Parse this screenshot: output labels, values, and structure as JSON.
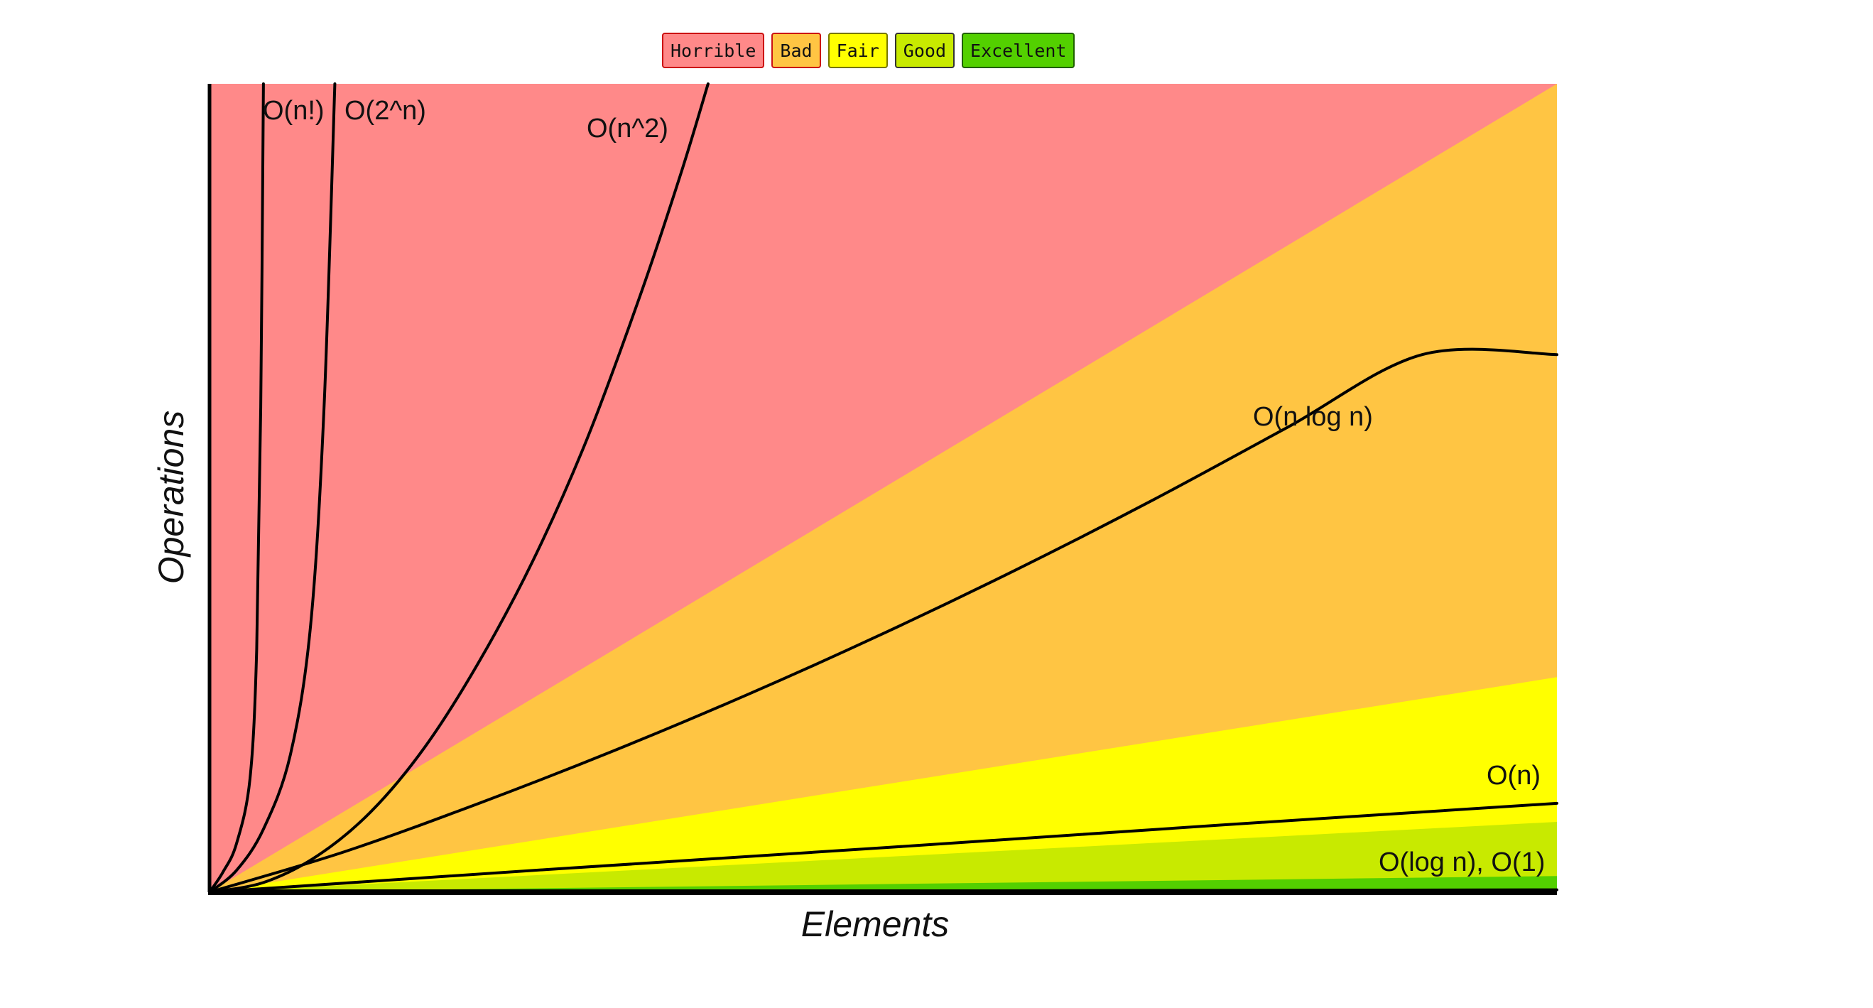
{
  "chart_data": {
    "type": "area",
    "title": "",
    "xlabel": "Elements",
    "ylabel": "Operations",
    "xlim": [
      0,
      100
    ],
    "ylim": [
      0,
      100
    ],
    "grid": false,
    "legend": {
      "placement": "top-center",
      "entries": [
        {
          "label": "Horrible",
          "color": "#ff8989",
          "border": "#cc1111"
        },
        {
          "label": "Bad",
          "color": "#ffc543",
          "border": "#cc1111"
        },
        {
          "label": "Fair",
          "color": "#ffff00",
          "border": "#777700"
        },
        {
          "label": "Good",
          "color": "#c8ea00",
          "border": "#333333"
        },
        {
          "label": "Excellent",
          "color": "#53d000",
          "border": "#1f5f00"
        }
      ]
    },
    "regions": [
      {
        "name": "Horrible",
        "color": "#ff8989",
        "upper_at_x100": 100
      },
      {
        "name": "Bad",
        "color": "#ffc543",
        "upper_at_x100": 100
      },
      {
        "name": "Fair",
        "color": "#ffff00",
        "upper_at_x100": 26.6
      },
      {
        "name": "Good",
        "color": "#c8ea00",
        "upper_at_x100": 8.7
      },
      {
        "name": "Excellent",
        "color": "#53d000",
        "upper_at_x100": 2.0
      }
    ],
    "series": [
      {
        "name": "O(n!)",
        "values": [
          [
            0,
            0
          ],
          [
            1,
            2.5
          ],
          [
            2,
            6
          ],
          [
            3,
            14
          ],
          [
            3.5,
            30
          ],
          [
            3.8,
            60
          ],
          [
            4.0,
            100
          ]
        ]
      },
      {
        "name": "O(2^n)",
        "values": [
          [
            0,
            0
          ],
          [
            2,
            2.7
          ],
          [
            4,
            7.8
          ],
          [
            6,
            17
          ],
          [
            7.5,
            33
          ],
          [
            8.5,
            60
          ],
          [
            9.3,
            100
          ]
        ]
      },
      {
        "name": "O(n^2)",
        "values": [
          [
            0,
            0
          ],
          [
            4,
            1.2
          ],
          [
            8,
            4.5
          ],
          [
            12,
            10
          ],
          [
            16,
            18
          ],
          [
            20,
            28.5
          ],
          [
            24,
            41
          ],
          [
            28,
            56
          ],
          [
            32,
            74
          ],
          [
            35,
            89
          ],
          [
            37,
            100
          ]
        ]
      },
      {
        "name": "O(n log n)",
        "values": [
          [
            0,
            0
          ],
          [
            10,
            5
          ],
          [
            20,
            11
          ],
          [
            30,
            17.5
          ],
          [
            40,
            24.5
          ],
          [
            50,
            32
          ],
          [
            60,
            40
          ],
          [
            70,
            48.5
          ],
          [
            80,
            57.5
          ],
          [
            90,
            66.5
          ],
          [
            100,
            66.5
          ]
        ]
      },
      {
        "name": "O(n)",
        "values": [
          [
            0,
            0
          ],
          [
            25,
            2.8
          ],
          [
            50,
            5.5
          ],
          [
            75,
            8.3
          ],
          [
            100,
            11
          ]
        ]
      },
      {
        "name": "O(log n), O(1)",
        "values": [
          [
            0,
            0
          ],
          [
            100,
            0.3
          ]
        ]
      }
    ],
    "labels": [
      "O(n!)",
      "O(2^n)",
      "O(n^2)",
      "O(n log n)",
      "O(n)",
      "O(log n), O(1)"
    ]
  }
}
